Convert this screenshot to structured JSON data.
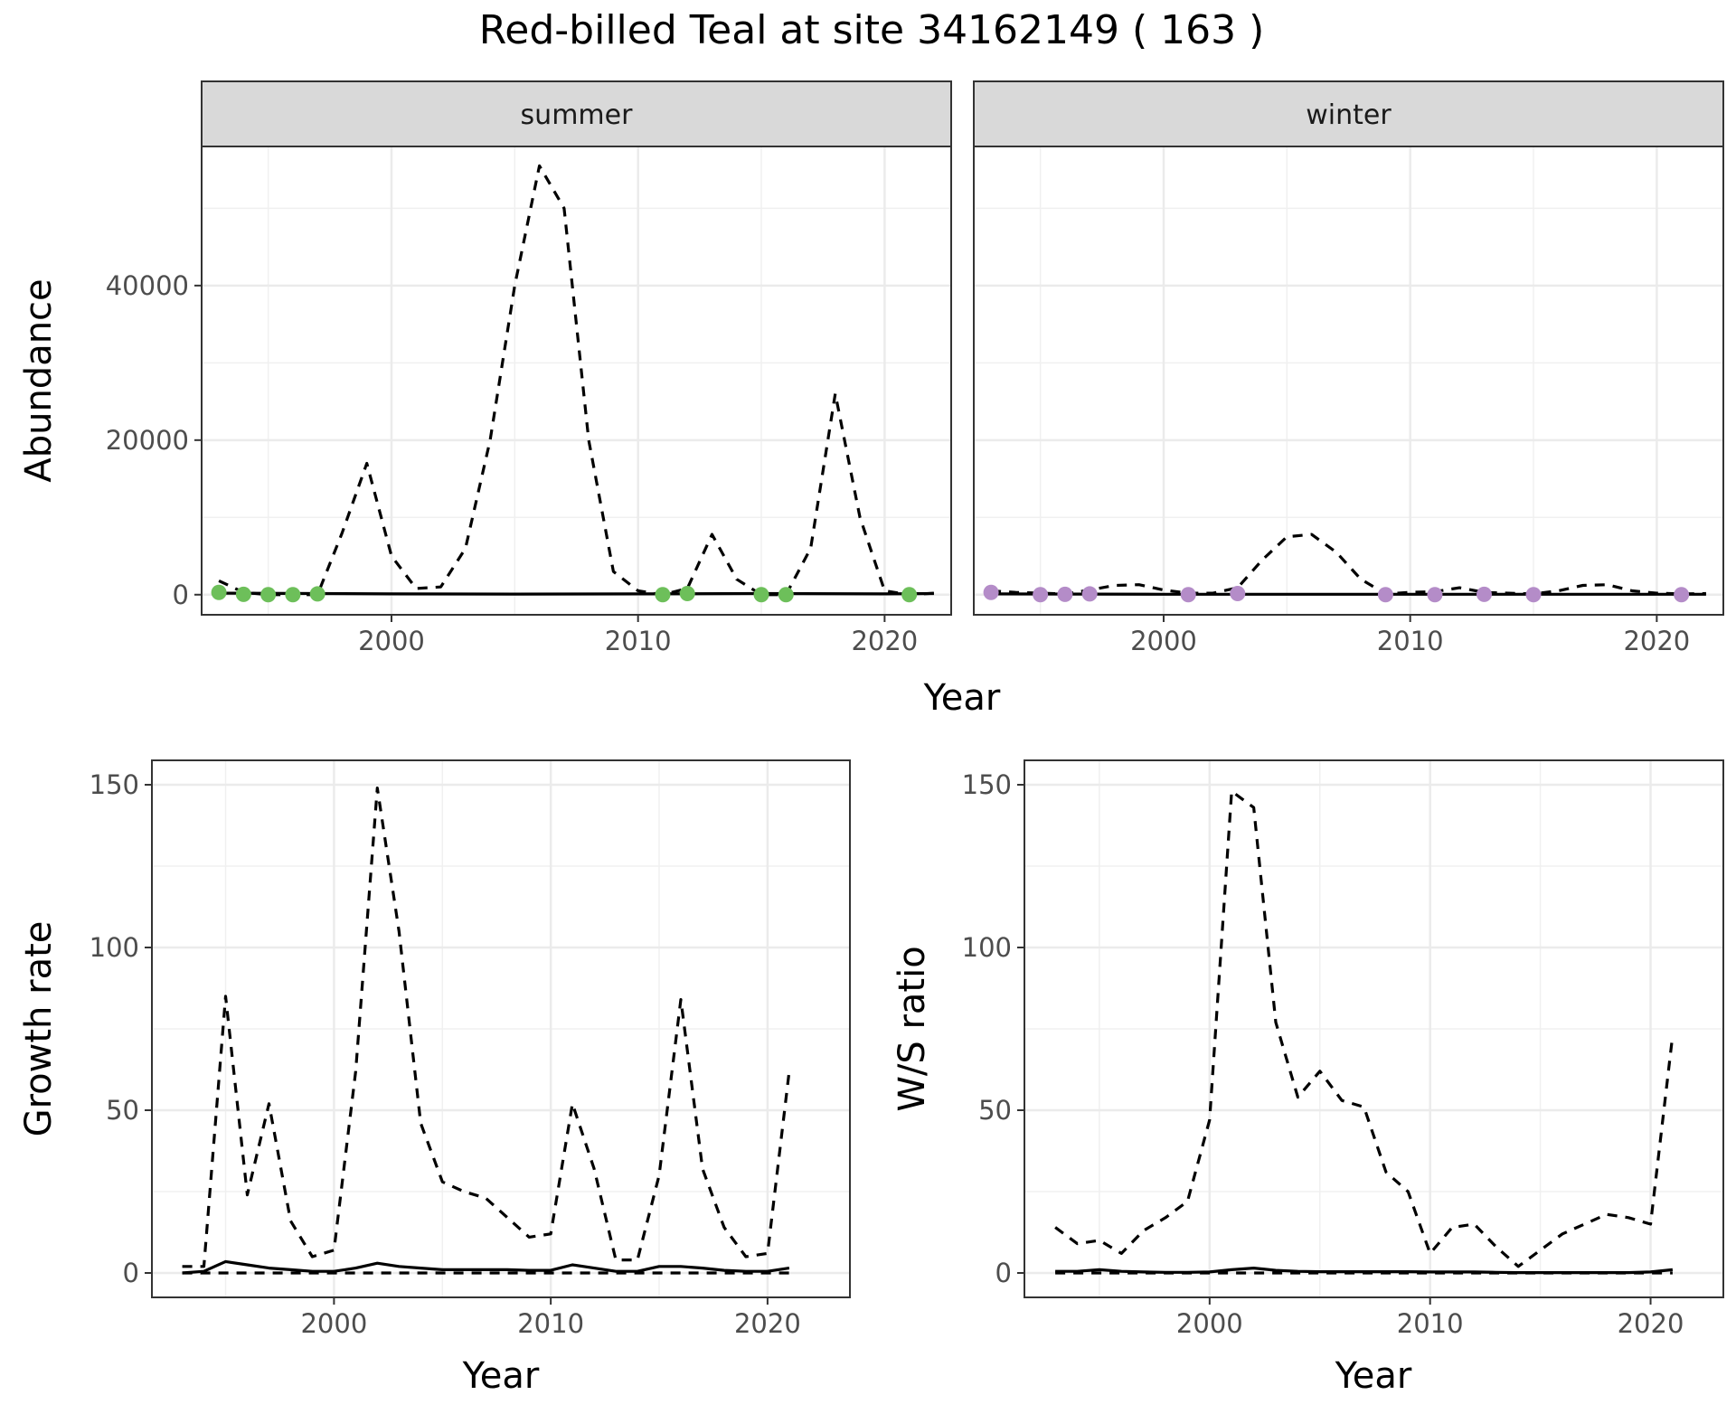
{
  "title": "Red-billed Teal at site 34162149 ( 163 )",
  "colors": {
    "summer_points": "#6dbf5a",
    "winter_points": "#b48cc8",
    "strip_bg": "#d9d9d9"
  },
  "chart_data": [
    {
      "type": "line",
      "panel": "abundance-summer",
      "facet": "summer",
      "xlabel": "Year",
      "ylabel": "Abundance",
      "xlim": [
        1992.3,
        2022.7
      ],
      "ylim": [
        -2600,
        58000
      ],
      "xticks": [
        2000,
        2010,
        2020
      ],
      "yticks": [
        0,
        20000,
        40000
      ],
      "grid": true,
      "series": [
        {
          "style": "dashed",
          "x": [
            1993,
            1994,
            1995,
            1996,
            1997,
            1998,
            1999,
            2000,
            2001,
            2002,
            2003,
            2004,
            2005,
            2006,
            2007,
            2008,
            2009,
            2010,
            2011,
            2012,
            2013,
            2014,
            2015,
            2016,
            2017,
            2018,
            2019,
            2020,
            2021,
            2022
          ],
          "values": [
            1800,
            300,
            0,
            0,
            0,
            8000,
            17000,
            5000,
            800,
            1000,
            6000,
            20000,
            40000,
            55500,
            50000,
            20000,
            3000,
            500,
            0,
            800,
            7800,
            2000,
            0,
            0,
            6000,
            26000,
            10000,
            500,
            0,
            200
          ]
        },
        {
          "style": "solid",
          "x": [
            1993,
            1997,
            2000,
            2005,
            2010,
            2015,
            2020,
            2022
          ],
          "values": [
            200,
            150,
            100,
            80,
            100,
            150,
            100,
            150
          ]
        },
        {
          "style": "points",
          "x": [
            1993,
            1994,
            1995,
            1996,
            1997,
            2011,
            2012,
            2015,
            2016,
            2021
          ],
          "values": [
            300,
            50,
            0,
            0,
            100,
            0,
            150,
            0,
            0,
            0
          ]
        }
      ]
    },
    {
      "type": "line",
      "panel": "abundance-winter",
      "facet": "winter",
      "xlabel": "Year",
      "ylabel": "Abundance",
      "xlim": [
        1992.3,
        2022.7
      ],
      "ylim": [
        -2600,
        58000
      ],
      "xticks": [
        2000,
        2010,
        2020
      ],
      "yticks": [
        0,
        20000,
        40000
      ],
      "grid": true,
      "series": [
        {
          "style": "dashed",
          "x": [
            1993,
            1994,
            1995,
            1996,
            1997,
            1998,
            1999,
            2000,
            2001,
            2002,
            2003,
            2004,
            2005,
            2006,
            2007,
            2008,
            2009,
            2010,
            2011,
            2012,
            2013,
            2014,
            2015,
            2016,
            2017,
            2018,
            2019,
            2020,
            2021,
            2022
          ],
          "values": [
            500,
            300,
            200,
            100,
            600,
            1200,
            1300,
            600,
            200,
            200,
            900,
            4500,
            7500,
            7800,
            5500,
            2000,
            100,
            300,
            400,
            900,
            300,
            200,
            100,
            500,
            1200,
            1300,
            500,
            200,
            100,
            150
          ]
        },
        {
          "style": "solid",
          "x": [
            1993,
            2000,
            2005,
            2010,
            2015,
            2020,
            2022
          ],
          "values": [
            100,
            50,
            50,
            50,
            50,
            50,
            50
          ]
        },
        {
          "style": "points",
          "x": [
            1993,
            1995,
            1996,
            1997,
            2001,
            2003,
            2009,
            2011,
            2013,
            2015,
            2021
          ],
          "values": [
            300,
            0,
            50,
            100,
            0,
            150,
            0,
            0,
            50,
            0,
            0
          ]
        }
      ]
    },
    {
      "type": "line",
      "panel": "growth-rate",
      "xlabel": "Year",
      "ylabel": "Growth rate",
      "xlim": [
        1991.6,
        2023.8
      ],
      "ylim": [
        -7.5,
        157.5
      ],
      "xticks": [
        2000,
        2010,
        2020
      ],
      "yticks": [
        0,
        50,
        100,
        150
      ],
      "grid": true,
      "series": [
        {
          "style": "dashed",
          "x": [
            1993,
            1994,
            1995,
            1996,
            1997,
            1998,
            1999,
            2000,
            2001,
            2002,
            2003,
            2004,
            2005,
            2006,
            2007,
            2008,
            2009,
            2010,
            2011,
            2012,
            2013,
            2014,
            2015,
            2016,
            2017,
            2018,
            2019,
            2020,
            2021
          ],
          "values": [
            2,
            2,
            85,
            24,
            52,
            16,
            5,
            7,
            62,
            149,
            105,
            46,
            28,
            25,
            23,
            17,
            11,
            12,
            52,
            32,
            4,
            4,
            30,
            84,
            32,
            14,
            5,
            6,
            62
          ]
        },
        {
          "style": "solid",
          "x": [
            1993,
            1994,
            1995,
            1996,
            1997,
            1998,
            1999,
            2000,
            2001,
            2002,
            2003,
            2004,
            2005,
            2006,
            2007,
            2008,
            2009,
            2010,
            2011,
            2012,
            2013,
            2014,
            2015,
            2016,
            2017,
            2018,
            2019,
            2020,
            2021
          ],
          "values": [
            0,
            0.5,
            3.5,
            2.5,
            1.5,
            1,
            0.5,
            0.5,
            1.5,
            3,
            2,
            1.5,
            1,
            1,
            1,
            1,
            0.8,
            0.8,
            2.5,
            1.5,
            0.5,
            0.5,
            2,
            2,
            1.5,
            0.8,
            0.5,
            0.5,
            1.5
          ]
        },
        {
          "style": "dashed",
          "x": [
            1993,
            2021
          ],
          "values": [
            0,
            0
          ]
        }
      ]
    },
    {
      "type": "line",
      "panel": "ws-ratio",
      "xlabel": "Year",
      "ylabel": "W/S ratio",
      "xlim": [
        1991.6,
        2023.3
      ],
      "ylim": [
        -7.5,
        157.5
      ],
      "xticks": [
        2000,
        2010,
        2020
      ],
      "yticks": [
        0,
        50,
        100,
        150
      ],
      "grid": true,
      "series": [
        {
          "style": "dashed",
          "x": [
            1993,
            1994,
            1995,
            1996,
            1997,
            1998,
            1999,
            2000,
            2001,
            2002,
            2003,
            2004,
            2005,
            2006,
            2007,
            2008,
            2009,
            2010,
            2011,
            2012,
            2013,
            2014,
            2015,
            2016,
            2017,
            2018,
            2019,
            2020,
            2021
          ],
          "values": [
            14,
            9,
            10,
            6,
            13,
            17,
            22,
            47,
            148,
            143,
            77,
            54,
            62,
            53,
            51,
            31,
            25,
            6,
            14,
            15,
            8,
            2,
            7,
            12,
            15,
            18,
            17,
            15,
            73
          ]
        },
        {
          "style": "solid",
          "x": [
            1993,
            1994,
            1995,
            1996,
            1997,
            1998,
            1999,
            2000,
            2001,
            2002,
            2003,
            2004,
            2005,
            2006,
            2007,
            2008,
            2009,
            2010,
            2011,
            2012,
            2013,
            2014,
            2015,
            2016,
            2017,
            2018,
            2019,
            2020,
            2021
          ],
          "values": [
            0.5,
            0.5,
            1,
            0.5,
            0.3,
            0.2,
            0.2,
            0.3,
            1,
            1.5,
            0.8,
            0.5,
            0.4,
            0.4,
            0.4,
            0.4,
            0.4,
            0.3,
            0.3,
            0.3,
            0.2,
            0.1,
            0.1,
            0.1,
            0.1,
            0.1,
            0.1,
            0.3,
            1
          ]
        },
        {
          "style": "dashed",
          "x": [
            1993,
            2021
          ],
          "values": [
            0,
            0
          ]
        }
      ]
    }
  ]
}
